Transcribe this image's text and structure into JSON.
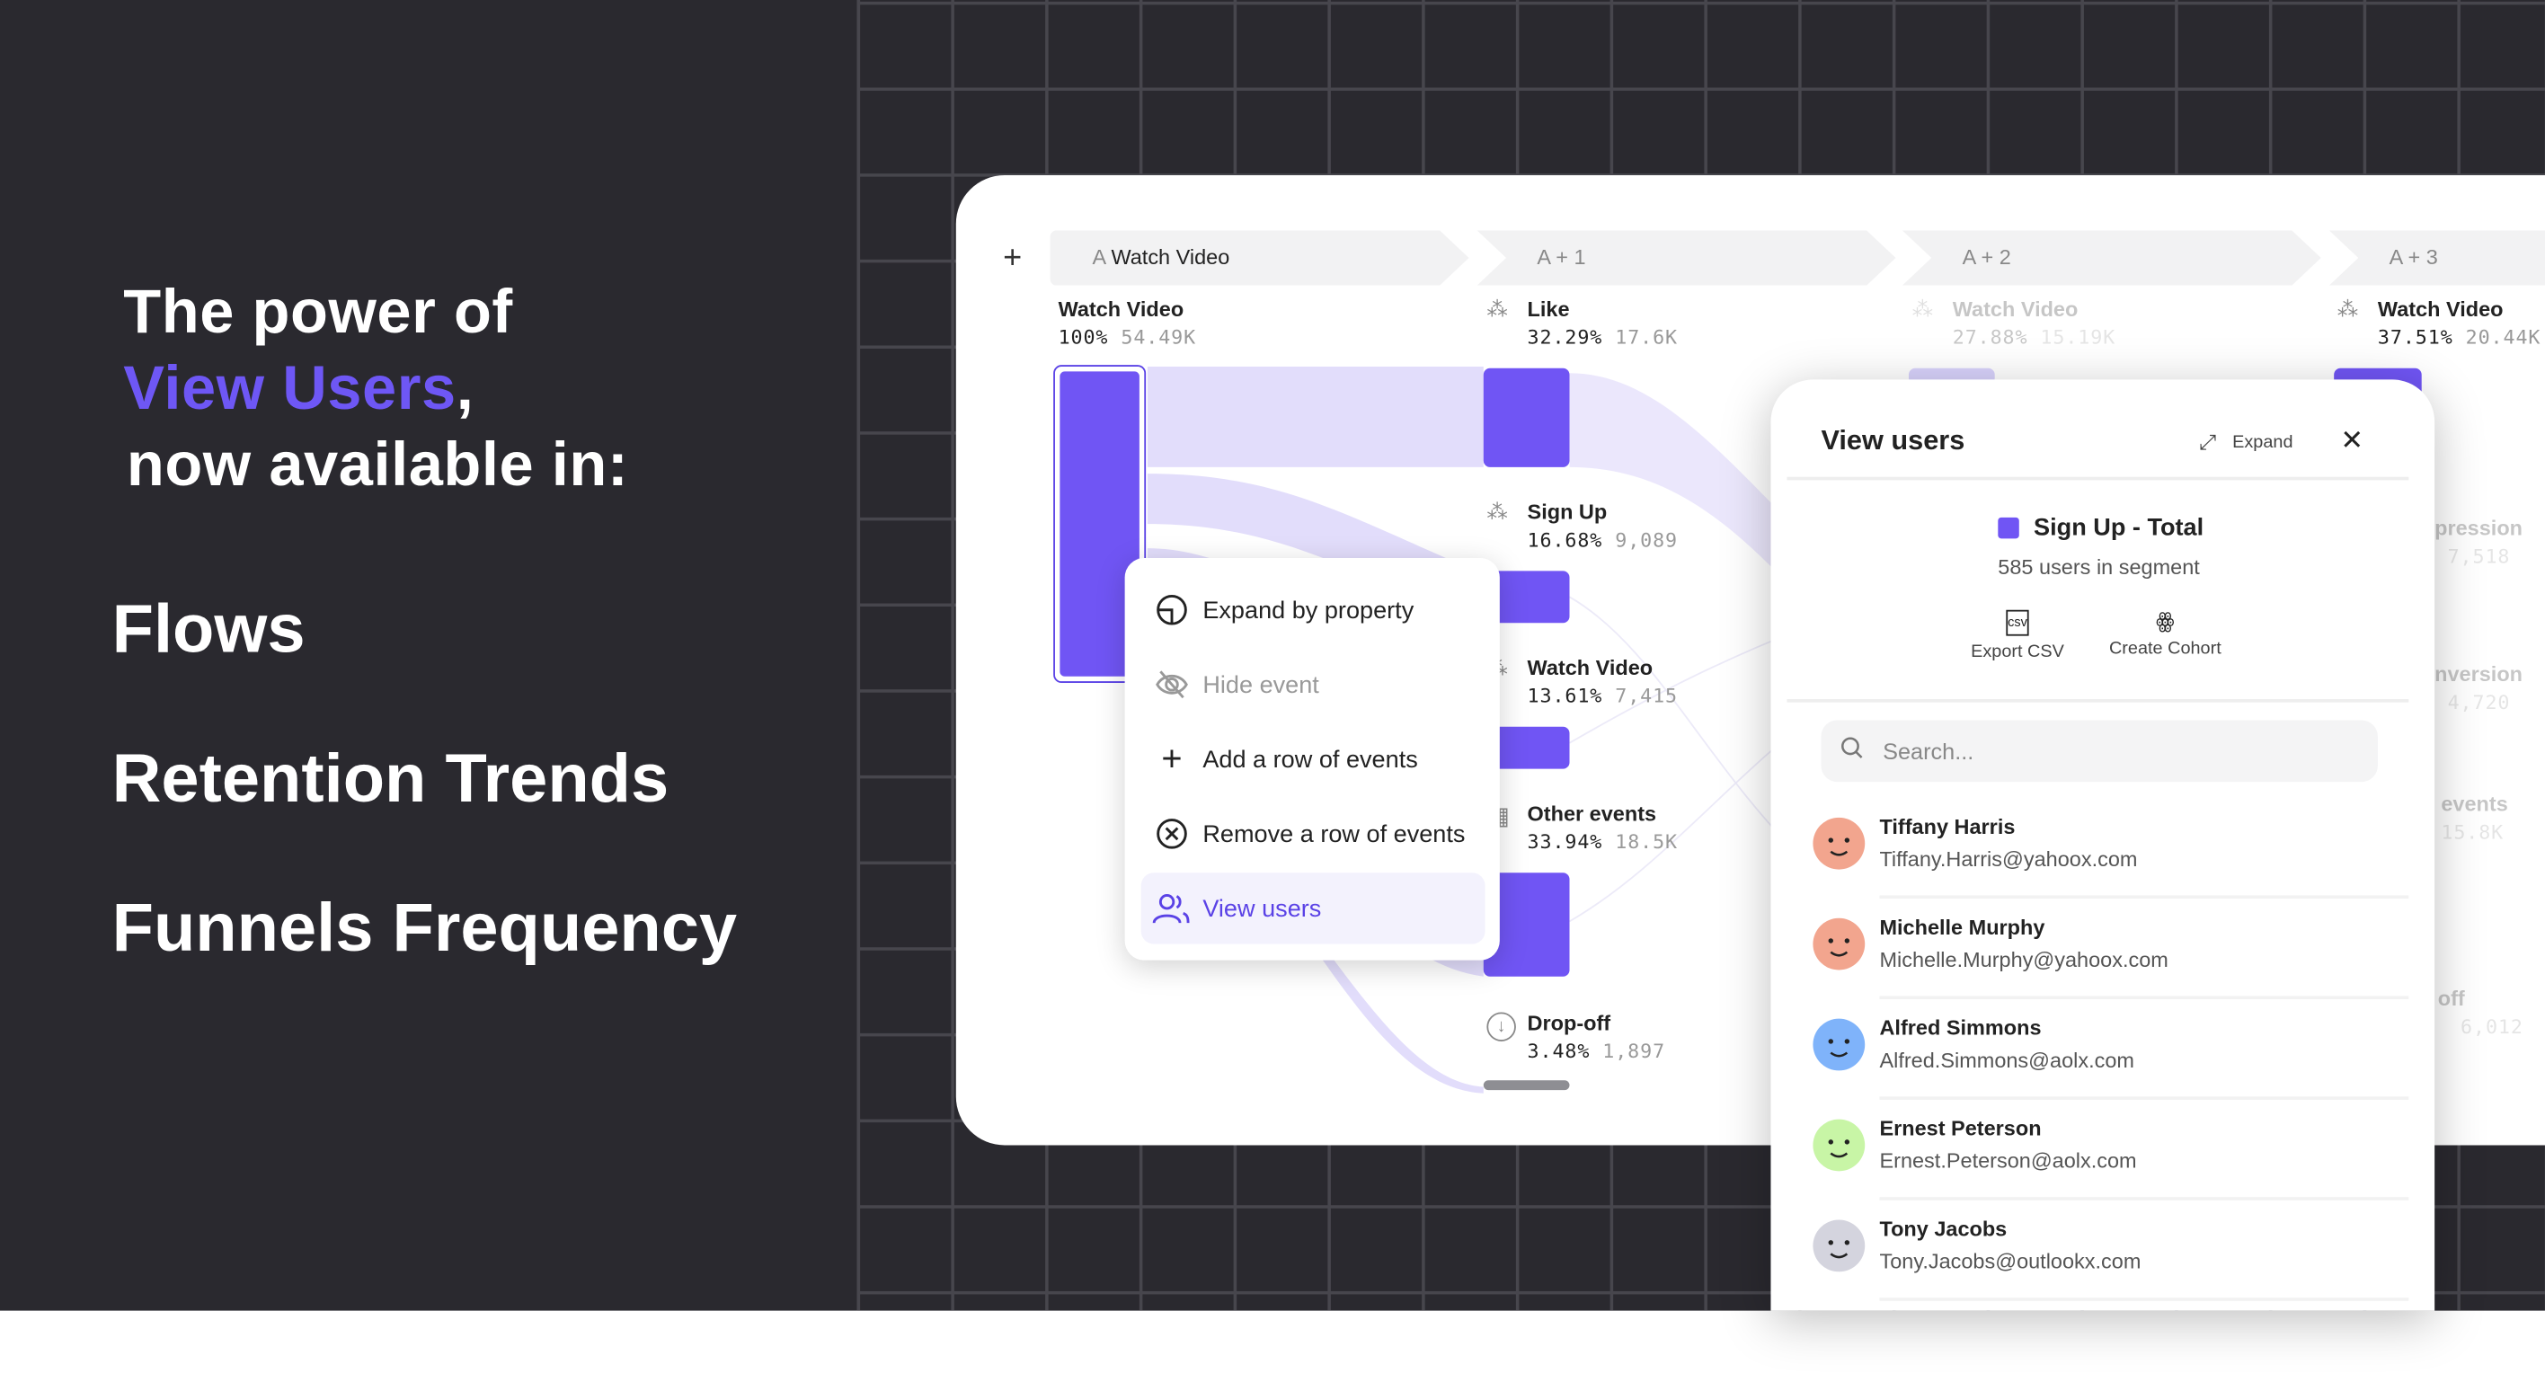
{
  "promo": {
    "line1": "The power of",
    "highlight": "View Users",
    "comma": ",",
    "line3": "now available in:",
    "features": [
      "Flows",
      "Retention Trends",
      "Funnels Frequency"
    ],
    "accent_color": "#6e57f5"
  },
  "flows": {
    "add_icon": "plus-icon",
    "steps": [
      {
        "prefix": "A",
        "label": "Watch Video"
      },
      {
        "label": "A + 1"
      },
      {
        "label": "A + 2"
      },
      {
        "label": "A + 3"
      }
    ],
    "start_node": {
      "name": "Watch Video",
      "percent": "100%",
      "count": "54.49K"
    },
    "col1_nodes": [
      {
        "name": "Like",
        "percent": "32.29%",
        "count": "17.6K",
        "icon": "click-icon"
      },
      {
        "name": "Sign Up",
        "percent": "16.68%",
        "count": "9,089",
        "icon": "click-icon"
      },
      {
        "name": "Watch Video",
        "percent": "13.61%",
        "count": "7,415",
        "icon": "click-icon"
      },
      {
        "name": "Other events",
        "percent": "33.94%",
        "count": "18.5K",
        "icon": "grid-icon"
      },
      {
        "name": "Drop-off",
        "percent": "3.48%",
        "count": "1,897",
        "icon": "arrow-down-circle-icon"
      }
    ],
    "col2_nodes": [
      {
        "name": "Watch Video",
        "percent": "27.88%",
        "count": "15.19K"
      }
    ],
    "col3_nodes": [
      {
        "name": "Watch Video",
        "percent": "37.51%",
        "count": "20.44K"
      },
      {
        "name": "pression",
        "count": "7,518"
      },
      {
        "name": "nversion",
        "count": "4,720"
      },
      {
        "name": "events",
        "count": "15.8K"
      },
      {
        "name": "off",
        "count": "6,012"
      }
    ],
    "bar_color": "#7055f4",
    "flow_color": "#e2ddfb"
  },
  "context_menu": {
    "items": [
      {
        "label": "Expand by property",
        "icon": "expand-property-icon",
        "state": "normal"
      },
      {
        "label": "Hide event",
        "icon": "eye-off-icon",
        "state": "disabled"
      },
      {
        "label": "Add a row of events",
        "icon": "plus-icon",
        "state": "normal"
      },
      {
        "label": "Remove a row of events",
        "icon": "close-circle-icon",
        "state": "normal"
      },
      {
        "label": "View users",
        "icon": "users-icon",
        "state": "selected"
      }
    ]
  },
  "view_users": {
    "title": "View users",
    "expand_label": "Expand",
    "segment_name": "Sign Up - Total",
    "segment_count": "585 users in segment",
    "export_label": "Export CSV",
    "cohort_label": "Create Cohort",
    "search_placeholder": "Search...",
    "users": [
      {
        "name": "Tiffany Harris",
        "email": "Tiffany.Harris@yahoox.com",
        "avatar_color": "#f2a58e"
      },
      {
        "name": "Michelle Murphy",
        "email": "Michelle.Murphy@yahoox.com",
        "avatar_color": "#f2a58e"
      },
      {
        "name": "Alfred Simmons",
        "email": "Alfred.Simmons@aolx.com",
        "avatar_color": "#7fb3fa"
      },
      {
        "name": "Ernest Peterson",
        "email": "Ernest.Peterson@aolx.com",
        "avatar_color": "#c8f5a6"
      },
      {
        "name": "Tony Jacobs",
        "email": "Tony.Jacobs@outlookx.com",
        "avatar_color": "#d4d4de"
      }
    ]
  }
}
